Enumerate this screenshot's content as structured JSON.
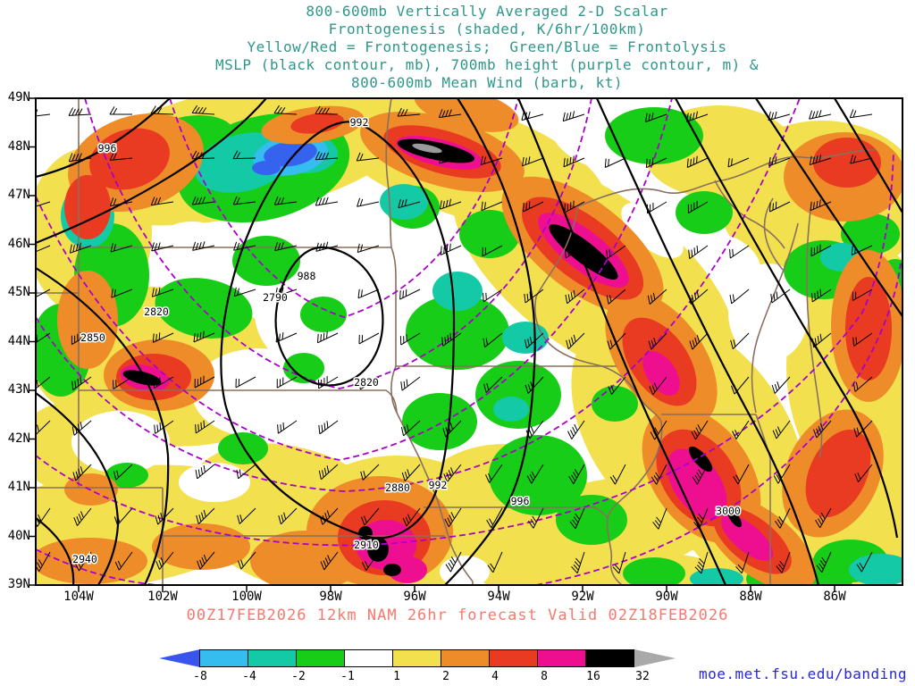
{
  "title": {
    "color": "#2f968a",
    "lines": [
      "800-600mb Vertically Averaged 2-D Scalar",
      "Frontogenesis (shaded, K/6hr/100km)",
      "Yellow/Red = Frontogenesis;  Green/Blue = Frontolysis",
      "MSLP (black contour, mb), 700mb height (purple contour, m) &",
      "800-600mb Mean Wind (barb, kt)"
    ]
  },
  "map": {
    "lat_ticks": [
      "49N",
      "48N",
      "47N",
      "46N",
      "45N",
      "44N",
      "43N",
      "42N",
      "41N",
      "40N",
      "39N"
    ],
    "lon_ticks": [
      "104W",
      "102W",
      "100W",
      "98W",
      "96W",
      "94W",
      "92W",
      "90W",
      "88W",
      "86W"
    ],
    "mslp_labels": [
      "992",
      "988",
      "992",
      "996",
      "996"
    ],
    "height_labels": [
      "2790",
      "2820",
      "2820",
      "2850",
      "2880",
      "2910",
      "2940",
      "3000"
    ],
    "contour_colors": {
      "mslp": "#000000",
      "height_700mb": "#aa00cc",
      "state_borders": "#8a6f5f",
      "wind_barbs": "#000000"
    }
  },
  "caption": {
    "color": "#f6796d",
    "text": "00Z17FEB2026 12km NAM 26hr forecast Valid 02Z18FEB2026"
  },
  "colorbar": {
    "ticks": [
      "-8",
      "-4",
      "-2",
      "-1",
      "1",
      "2",
      "4",
      "8",
      "16",
      "32"
    ],
    "segment_colors": [
      "#35bdf0",
      "#14c9a6",
      "#17cd17",
      "#ffffff",
      "#f2e04e",
      "#ef8c2a",
      "#e93a22",
      "#ee0f90",
      "#000000"
    ],
    "arrow_left_color": "#3a55ee",
    "arrow_right_color": "#a9a9a9"
  },
  "link": {
    "color": "#2525e8",
    "text": "moe.met.fsu.edu/banding"
  }
}
